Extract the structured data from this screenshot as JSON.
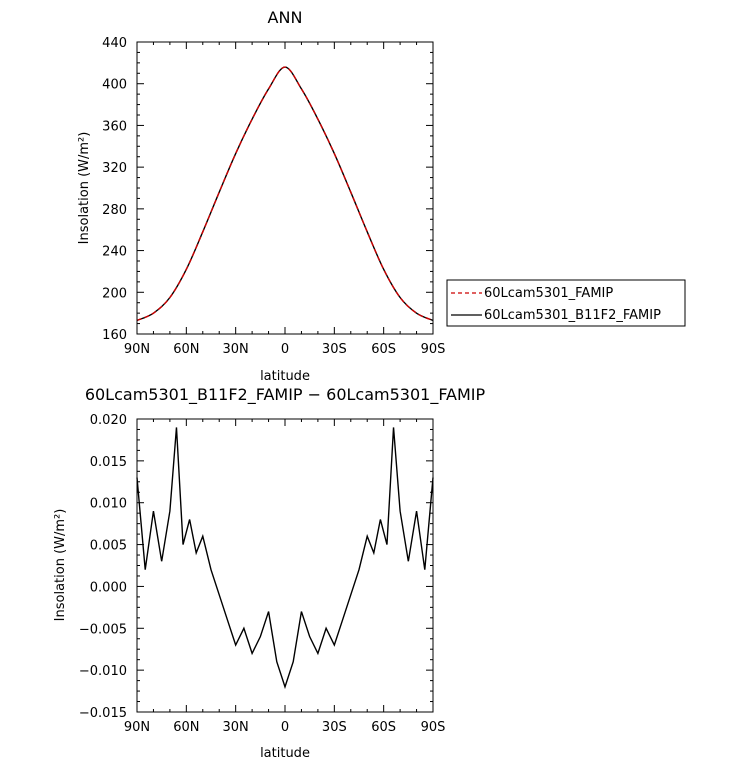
{
  "chart_data": [
    {
      "type": "line",
      "title": "ANN",
      "xlabel": "latitude",
      "ylabel": "Insolation (W/m²)",
      "ylim": [
        160,
        440
      ],
      "yticks": [
        "160",
        "200",
        "240",
        "280",
        "320",
        "360",
        "400",
        "440"
      ],
      "xlim": [
        90,
        -90
      ],
      "xtick_labels": [
        "90N",
        "60N",
        "30N",
        "0",
        "30S",
        "60S",
        "90S"
      ],
      "x": [
        90,
        80,
        70,
        60,
        50,
        40,
        30,
        20,
        10,
        0,
        -10,
        -20,
        -30,
        -40,
        -50,
        -60,
        -70,
        -80,
        -90
      ],
      "series": [
        {
          "name": "60Lcam5301_FAMIP",
          "color": "#cc0000",
          "style": "dashed",
          "values": [
            173,
            180,
            195,
            222,
            258,
            296,
            333,
            366,
            395,
            416,
            395,
            366,
            333,
            296,
            258,
            222,
            195,
            180,
            173
          ]
        },
        {
          "name": "60Lcam5301_B11F2_FAMIP",
          "color": "#000000",
          "style": "solid",
          "values": [
            173,
            180,
            195,
            222,
            258,
            296,
            333,
            366,
            395,
            416,
            395,
            366,
            333,
            296,
            258,
            222,
            195,
            180,
            173
          ]
        }
      ],
      "legend": [
        "60Lcam5301_FAMIP",
        "60Lcam5301_B11F2_FAMIP"
      ]
    },
    {
      "type": "line",
      "title": "60Lcam5301_B11F2_FAMIP − 60Lcam5301_FAMIP",
      "xlabel": "latitude",
      "ylabel": "Insolation (W/m²)",
      "ylim": [
        -0.015,
        0.02
      ],
      "yticks": [
        "−0.015",
        "−0.010",
        "−0.005",
        "0.000",
        "0.005",
        "0.010",
        "0.015",
        "0.020"
      ],
      "xlim": [
        90,
        -90
      ],
      "xtick_labels": [
        "90N",
        "60N",
        "30N",
        "0",
        "30S",
        "60S",
        "90S"
      ],
      "x": [
        90,
        85,
        80,
        75,
        70,
        66,
        62,
        58,
        54,
        50,
        45,
        40,
        35,
        30,
        25,
        20,
        15,
        10,
        5,
        0,
        -5,
        -10,
        -15,
        -20,
        -25,
        -30,
        -35,
        -40,
        -45,
        -50,
        -54,
        -58,
        -62,
        -66,
        -70,
        -75,
        -80,
        -85,
        -90
      ],
      "series": [
        {
          "name": "60Lcam5301_B11F2_FAMIP",
          "color": "#000000",
          "style": "solid",
          "values": [
            0.013,
            0.002,
            0.009,
            0.003,
            0.009,
            0.019,
            0.005,
            0.008,
            0.004,
            0.006,
            0.002,
            -0.001,
            -0.004,
            -0.007,
            -0.005,
            -0.008,
            -0.006,
            -0.003,
            -0.009,
            -0.012,
            -0.009,
            -0.003,
            -0.006,
            -0.008,
            -0.005,
            -0.007,
            -0.004,
            -0.001,
            0.002,
            0.006,
            0.004,
            0.008,
            0.005,
            0.019,
            0.009,
            0.003,
            0.009,
            0.002,
            0.013
          ]
        }
      ]
    }
  ]
}
